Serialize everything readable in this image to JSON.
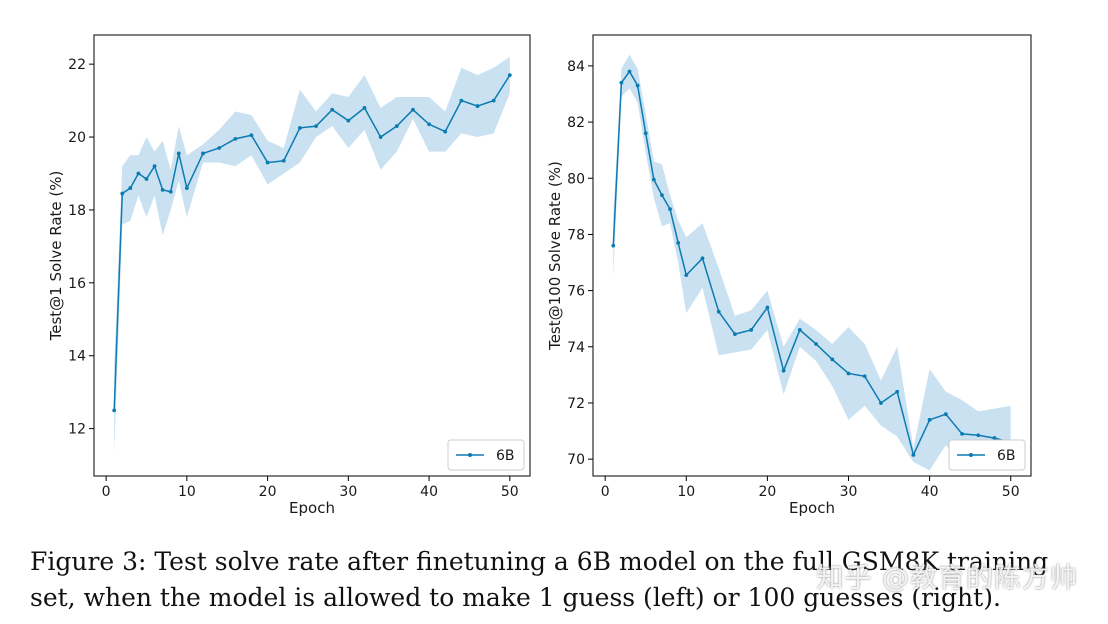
{
  "chart_data": [
    {
      "type": "line",
      "xlabel": "Epoch",
      "ylabel": "Test@1 Solve Rate (%)",
      "xlim": [
        -1.5,
        52.5
      ],
      "ylim": [
        10.7,
        22.8
      ],
      "xticks": [
        0,
        10,
        20,
        30,
        40,
        50
      ],
      "yticks": [
        12,
        14,
        16,
        18,
        20,
        22
      ],
      "legend": {
        "label": "6B",
        "position": "bottom-right"
      },
      "series": [
        {
          "name": "6B",
          "x": [
            1,
            2,
            3,
            4,
            5,
            6,
            7,
            8,
            9,
            10,
            12,
            14,
            16,
            18,
            20,
            22,
            24,
            26,
            28,
            30,
            32,
            34,
            36,
            38,
            40,
            42,
            44,
            46,
            48,
            50
          ],
          "y": [
            12.5,
            18.45,
            18.6,
            19.0,
            18.85,
            19.2,
            18.55,
            18.5,
            19.55,
            18.6,
            19.55,
            19.7,
            19.95,
            20.05,
            19.3,
            19.35,
            20.25,
            20.3,
            20.75,
            20.45,
            20.8,
            20.0,
            20.3,
            20.75,
            20.35,
            20.15,
            21.0,
            20.85,
            21.0,
            21.7
          ],
          "lower": [
            11.3,
            17.6,
            17.7,
            18.4,
            17.8,
            18.4,
            17.3,
            18.0,
            18.8,
            17.8,
            19.3,
            19.3,
            19.2,
            19.5,
            18.7,
            19.0,
            19.3,
            20.0,
            20.3,
            19.7,
            20.2,
            19.1,
            19.6,
            20.5,
            19.6,
            19.6,
            20.1,
            20.0,
            20.1,
            21.2
          ],
          "upper": [
            13.7,
            19.2,
            19.5,
            19.5,
            20.0,
            19.6,
            19.9,
            19.1,
            20.3,
            19.5,
            19.8,
            20.2,
            20.7,
            20.6,
            19.9,
            19.7,
            21.3,
            20.7,
            21.2,
            21.1,
            21.7,
            20.8,
            21.1,
            21.1,
            21.1,
            20.7,
            21.9,
            21.7,
            21.9,
            22.2
          ]
        }
      ]
    },
    {
      "type": "line",
      "xlabel": "Epoch",
      "ylabel": "Test@100 Solve Rate (%)",
      "xlim": [
        -1.5,
        52.5
      ],
      "ylim": [
        69.4,
        85.1
      ],
      "xticks": [
        0,
        10,
        20,
        30,
        40,
        50
      ],
      "yticks": [
        70,
        72,
        74,
        76,
        78,
        80,
        82,
        84
      ],
      "legend": {
        "label": "6B",
        "position": "bottom-right"
      },
      "series": [
        {
          "name": "6B",
          "x": [
            1,
            2,
            3,
            4,
            5,
            6,
            7,
            8,
            9,
            10,
            12,
            14,
            16,
            18,
            20,
            22,
            24,
            26,
            28,
            30,
            32,
            34,
            36,
            38,
            40,
            42,
            44,
            46,
            48,
            50
          ],
          "y": [
            77.6,
            83.4,
            83.8,
            83.3,
            81.6,
            79.95,
            79.4,
            78.9,
            77.7,
            76.55,
            77.15,
            75.25,
            74.45,
            74.6,
            75.4,
            73.15,
            74.6,
            74.1,
            73.55,
            73.05,
            72.95,
            72.0,
            72.4,
            70.15,
            71.4,
            71.6,
            70.9,
            70.85,
            70.75,
            70.6
          ],
          "lower": [
            76.5,
            82.9,
            83.2,
            82.7,
            80.9,
            79.3,
            78.3,
            78.4,
            77.0,
            75.2,
            76.1,
            73.7,
            73.8,
            73.9,
            74.6,
            72.3,
            74.0,
            73.5,
            72.6,
            71.4,
            71.9,
            71.2,
            70.8,
            69.9,
            69.6,
            70.5,
            69.9,
            70.1,
            69.8,
            69.7
          ],
          "upper": [
            78.7,
            83.9,
            84.4,
            83.9,
            82.3,
            80.6,
            80.5,
            79.4,
            78.5,
            77.9,
            78.4,
            76.8,
            75.1,
            75.3,
            76.0,
            74.0,
            75.0,
            74.6,
            74.1,
            74.7,
            74.1,
            72.8,
            74.0,
            70.4,
            73.2,
            72.4,
            72.1,
            71.7,
            71.8,
            71.9
          ]
        }
      ]
    }
  ],
  "caption": {
    "text": "Figure 3:  Test solve rate after finetuning a 6B model on the full GSM8K training set, when the model is allowed to make 1 guess (left) or 100 guesses (right)."
  },
  "watermark": {
    "text": "知乎 @教育的陈方帅"
  },
  "colors": {
    "line": "#0c7bb2",
    "band": "#c9e1f1",
    "axis": "#000000",
    "legend_border": "#cccccc"
  }
}
